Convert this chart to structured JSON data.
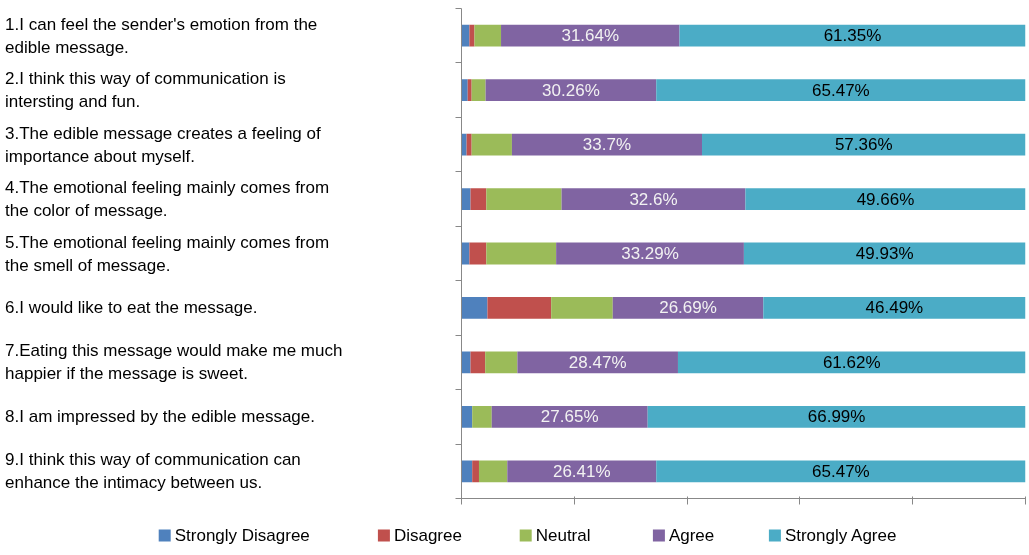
{
  "chart_data": {
    "type": "bar",
    "orientation": "horizontal",
    "stacked": true,
    "categories": [
      "1.I can feel the sender's emotion from the edible message.",
      "2.I think this way of communication is intersting and fun.",
      "3.The edible message creates  a feeling of importance about myself.",
      "4.The emotional feeling mainly comes from the color of message.",
      "5.The emotional feeling mainly comes from the smell of message.",
      "6.I would like to eat the message.",
      "7.Eating this message would make me much happier if the message is sweet.",
      "8.I am impressed by the edible message.",
      "9.I think this way of communication can enhance the intimacy between us."
    ],
    "series": [
      {
        "name": "Strongly Disagree",
        "color": "#4f81bd",
        "values": [
          1.4,
          1.1,
          0.9,
          1.6,
          1.4,
          4.6,
          1.6,
          1.9,
          1.9
        ]
      },
      {
        "name": "Disagree",
        "color": "#c0504d",
        "values": [
          0.9,
          0.7,
          0.9,
          2.8,
          3.0,
          11.3,
          2.6,
          0,
          1.2
        ]
      },
      {
        "name": "Neutral",
        "color": "#9bbb59",
        "values": [
          4.71,
          2.47,
          7.14,
          13.34,
          12.38,
          10.92,
          5.71,
          3.46,
          5.02
        ]
      },
      {
        "name": "Agree",
        "color": "#8064a2",
        "values": [
          31.64,
          30.26,
          33.7,
          32.6,
          33.29,
          26.69,
          28.47,
          27.65,
          26.41
        ],
        "value_labels": [
          "31.64%",
          "30.26%",
          "33.7%",
          "32.6%",
          "33.29%",
          "26.69%",
          "28.47%",
          "27.65%",
          "26.41%"
        ]
      },
      {
        "name": "Strongly Agree",
        "color": "#4bacc6",
        "values": [
          61.35,
          65.47,
          57.36,
          49.66,
          49.93,
          46.49,
          61.62,
          66.99,
          65.47
        ],
        "value_labels": [
          "61.35%",
          "65.47%",
          "57.36%",
          "49.66%",
          "49.93%",
          "46.49%",
          "61.62%",
          "66.99%",
          "65.47%"
        ]
      }
    ],
    "xlim": [
      0,
      100
    ],
    "xticks": [
      {
        "value": 0,
        "label": null
      },
      {
        "value": 20,
        "label": null
      },
      {
        "value": 40,
        "label": null
      },
      {
        "value": 60,
        "label": null
      },
      {
        "value": 80,
        "label": null
      },
      {
        "value": 100,
        "label": null
      }
    ],
    "tick_labels": "y",
    "grid": false,
    "legend": "bottom"
  }
}
